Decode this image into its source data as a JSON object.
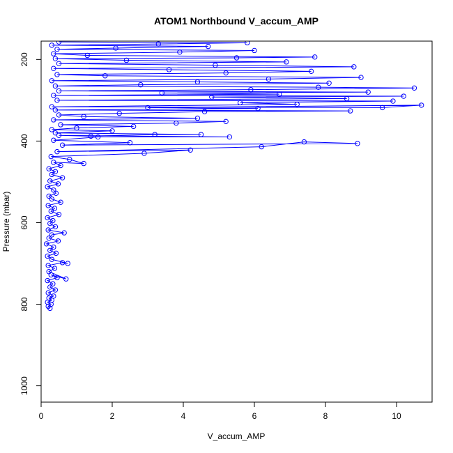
{
  "chart_data": {
    "type": "line",
    "title": "ATOM1 Northbound V_accum_AMP",
    "xlabel": "V_accum_AMP",
    "ylabel": "Pressure (mbar)",
    "xlim": [
      0,
      11
    ],
    "ylim": [
      1040,
      155
    ],
    "y_inverted": true,
    "x_ticks": [
      0,
      2,
      4,
      6,
      8,
      10
    ],
    "x_tick_labels": [
      "0",
      "2",
      "4",
      "6",
      "8",
      "10"
    ],
    "y_ticks": [
      200,
      400,
      600,
      800,
      1000
    ],
    "y_tick_labels": [
      "200",
      "400",
      "600",
      "800",
      "1000"
    ],
    "grid": false,
    "legend": "none",
    "marker": "open-circle",
    "series_color": "#0000ff",
    "series": [
      {
        "points": [
          [
            0.25,
            810
          ],
          [
            0.2,
            805
          ],
          [
            0.28,
            800
          ],
          [
            0.18,
            795
          ],
          [
            0.3,
            790
          ],
          [
            0.22,
            785
          ],
          [
            0.35,
            780
          ],
          [
            0.2,
            772
          ],
          [
            0.4,
            765
          ],
          [
            0.25,
            758
          ],
          [
            0.33,
            750
          ],
          [
            0.18,
            742
          ],
          [
            0.45,
            735
          ],
          [
            0.28,
            728
          ],
          [
            0.7,
            738
          ],
          [
            0.22,
            720
          ],
          [
            0.38,
            712
          ],
          [
            0.2,
            705
          ],
          [
            0.6,
            698
          ],
          [
            0.75,
            700
          ],
          [
            0.3,
            690
          ],
          [
            0.18,
            682
          ],
          [
            0.42,
            675
          ],
          [
            0.25,
            668
          ],
          [
            0.35,
            660
          ],
          [
            0.15,
            652
          ],
          [
            0.48,
            645
          ],
          [
            0.22,
            638
          ],
          [
            0.3,
            630
          ],
          [
            0.65,
            625
          ],
          [
            0.2,
            618
          ],
          [
            0.4,
            610
          ],
          [
            0.25,
            602
          ],
          [
            0.33,
            595
          ],
          [
            0.18,
            588
          ],
          [
            0.5,
            580
          ],
          [
            0.28,
            572
          ],
          [
            0.38,
            565
          ],
          [
            0.2,
            558
          ],
          [
            0.55,
            550
          ],
          [
            0.3,
            542
          ],
          [
            0.22,
            535
          ],
          [
            0.42,
            528
          ],
          [
            0.35,
            520
          ],
          [
            0.18,
            512
          ],
          [
            0.48,
            505
          ],
          [
            0.25,
            498
          ],
          [
            0.6,
            490
          ],
          [
            0.3,
            482
          ],
          [
            0.4,
            475
          ],
          [
            0.22,
            468
          ],
          [
            0.55,
            460
          ],
          [
            0.35,
            452
          ],
          [
            1.2,
            455
          ],
          [
            0.8,
            445
          ],
          [
            0.28,
            438
          ],
          [
            2.9,
            430
          ],
          [
            4.2,
            422
          ],
          [
            0.45,
            426
          ],
          [
            6.2,
            414
          ],
          [
            7.4,
            402
          ],
          [
            8.9,
            406
          ],
          [
            0.6,
            410
          ],
          [
            2.5,
            404
          ],
          [
            0.35,
            398
          ],
          [
            1.6,
            390
          ],
          [
            5.3,
            390
          ],
          [
            0.5,
            386
          ],
          [
            1.4,
            388
          ],
          [
            3.2,
            384
          ],
          [
            4.5,
            384
          ],
          [
            0.4,
            380
          ],
          [
            2.0,
            375
          ],
          [
            0.3,
            372
          ],
          [
            1.0,
            368
          ],
          [
            2.6,
            364
          ],
          [
            0.55,
            360
          ],
          [
            3.8,
            356
          ],
          [
            5.2,
            352
          ],
          [
            0.35,
            348
          ],
          [
            4.4,
            344
          ],
          [
            1.2,
            340
          ],
          [
            0.5,
            336
          ],
          [
            2.2,
            332
          ],
          [
            4.6,
            328
          ],
          [
            8.7,
            326
          ],
          [
            0.4,
            324
          ],
          [
            6.1,
            320
          ],
          [
            3.0,
            318
          ],
          [
            10.7,
            312
          ],
          [
            9.6,
            318
          ],
          [
            0.3,
            316
          ],
          [
            7.2,
            310
          ],
          [
            5.6,
            306
          ],
          [
            9.9,
            302
          ],
          [
            0.45,
            300
          ],
          [
            8.6,
            296
          ],
          [
            4.8,
            292
          ],
          [
            10.2,
            290
          ],
          [
            0.35,
            288
          ],
          [
            6.7,
            285
          ],
          [
            3.4,
            282
          ],
          [
            9.2,
            280
          ],
          [
            0.5,
            277
          ],
          [
            5.9,
            274
          ],
          [
            10.5,
            270
          ],
          [
            7.8,
            268
          ],
          [
            0.4,
            265
          ],
          [
            2.8,
            262
          ],
          [
            8.1,
            258
          ],
          [
            4.4,
            255
          ],
          [
            0.3,
            252
          ],
          [
            6.4,
            248
          ],
          [
            9.0,
            244
          ],
          [
            1.8,
            240
          ],
          [
            0.45,
            237
          ],
          [
            5.2,
            233
          ],
          [
            7.6,
            229
          ],
          [
            3.6,
            225
          ],
          [
            0.35,
            222
          ],
          [
            8.8,
            218
          ],
          [
            4.9,
            214
          ],
          [
            0.5,
            210
          ],
          [
            6.9,
            206
          ],
          [
            2.4,
            202
          ],
          [
            0.4,
            198
          ],
          [
            5.5,
            196
          ],
          [
            7.7,
            194
          ],
          [
            1.3,
            190
          ],
          [
            0.35,
            186
          ],
          [
            3.9,
            182
          ],
          [
            6.0,
            178
          ],
          [
            0.45,
            175
          ],
          [
            2.1,
            172
          ],
          [
            4.7,
            168
          ],
          [
            0.3,
            165
          ],
          [
            3.3,
            162
          ],
          [
            5.8,
            159
          ],
          [
            0.5,
            157
          ]
        ]
      }
    ]
  }
}
